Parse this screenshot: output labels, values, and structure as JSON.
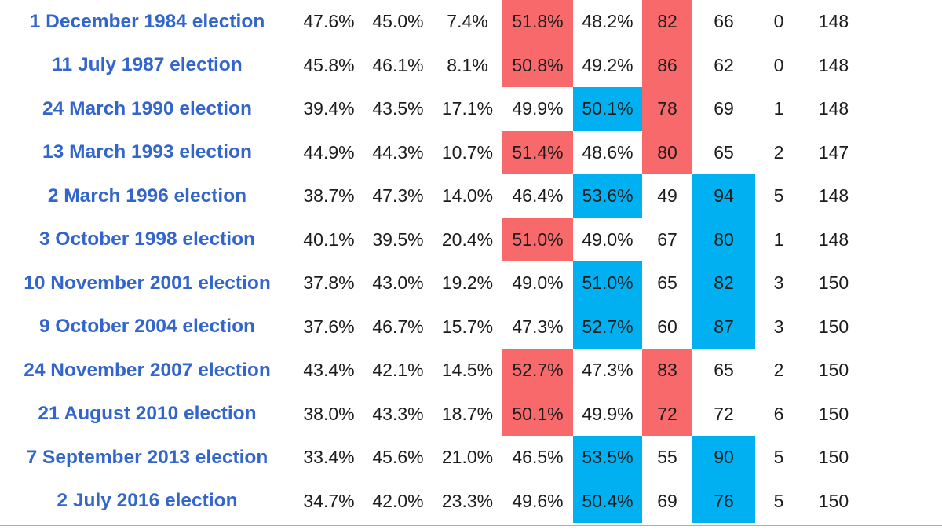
{
  "colors": {
    "labor_red": "#F8696B",
    "coalition_blue": "#00B0F0",
    "link_blue": "#3366CC",
    "text": "#1C1C1C",
    "rule_gray": "#ACACAC"
  },
  "table": {
    "columns": [
      "election",
      "alp-primary-pct",
      "lnp-primary-pct",
      "others-primary-pct",
      "tpp-alp-pct",
      "tpp-lnp-pct",
      "alp-seats",
      "lnp-seats",
      "others-seats",
      "total-seats"
    ],
    "rows": [
      {
        "election": "1 December 1984 election",
        "cells": [
          {
            "v": "47.6%"
          },
          {
            "v": "45.0%"
          },
          {
            "v": "7.4%"
          },
          {
            "v": "51.8%",
            "hl": "red"
          },
          {
            "v": "48.2%"
          },
          {
            "v": "82",
            "hl": "red"
          },
          {
            "v": "66"
          },
          {
            "v": "0"
          },
          {
            "v": "148"
          }
        ]
      },
      {
        "election": "11 July 1987 election",
        "cells": [
          {
            "v": "45.8%"
          },
          {
            "v": "46.1%"
          },
          {
            "v": "8.1%"
          },
          {
            "v": "50.8%",
            "hl": "red"
          },
          {
            "v": "49.2%"
          },
          {
            "v": "86",
            "hl": "red"
          },
          {
            "v": "62"
          },
          {
            "v": "0"
          },
          {
            "v": "148"
          }
        ]
      },
      {
        "election": "24 March 1990 election",
        "cells": [
          {
            "v": "39.4%"
          },
          {
            "v": "43.5%"
          },
          {
            "v": "17.1%"
          },
          {
            "v": "49.9%"
          },
          {
            "v": "50.1%",
            "hl": "blue"
          },
          {
            "v": "78",
            "hl": "red"
          },
          {
            "v": "69"
          },
          {
            "v": "1"
          },
          {
            "v": "148"
          }
        ]
      },
      {
        "election": "13 March 1993 election",
        "cells": [
          {
            "v": "44.9%"
          },
          {
            "v": "44.3%"
          },
          {
            "v": "10.7%"
          },
          {
            "v": "51.4%",
            "hl": "red"
          },
          {
            "v": "48.6%"
          },
          {
            "v": "80",
            "hl": "red"
          },
          {
            "v": "65"
          },
          {
            "v": "2"
          },
          {
            "v": "147"
          }
        ]
      },
      {
        "election": "2 March 1996 election",
        "cells": [
          {
            "v": "38.7%"
          },
          {
            "v": "47.3%"
          },
          {
            "v": "14.0%"
          },
          {
            "v": "46.4%"
          },
          {
            "v": "53.6%",
            "hl": "blue"
          },
          {
            "v": "49"
          },
          {
            "v": "94",
            "hl": "blue"
          },
          {
            "v": "5"
          },
          {
            "v": "148"
          }
        ]
      },
      {
        "election": "3 October 1998 election",
        "cells": [
          {
            "v": "40.1%"
          },
          {
            "v": "39.5%"
          },
          {
            "v": "20.4%"
          },
          {
            "v": "51.0%",
            "hl": "red"
          },
          {
            "v": "49.0%"
          },
          {
            "v": "67"
          },
          {
            "v": "80",
            "hl": "blue"
          },
          {
            "v": "1"
          },
          {
            "v": "148"
          }
        ]
      },
      {
        "election": "10 November 2001 election",
        "cells": [
          {
            "v": "37.8%"
          },
          {
            "v": "43.0%"
          },
          {
            "v": "19.2%"
          },
          {
            "v": "49.0%"
          },
          {
            "v": "51.0%",
            "hl": "blue"
          },
          {
            "v": "65"
          },
          {
            "v": "82",
            "hl": "blue"
          },
          {
            "v": "3"
          },
          {
            "v": "150"
          }
        ]
      },
      {
        "election": "9 October 2004 election",
        "cells": [
          {
            "v": "37.6%"
          },
          {
            "v": "46.7%"
          },
          {
            "v": "15.7%"
          },
          {
            "v": "47.3%"
          },
          {
            "v": "52.7%",
            "hl": "blue"
          },
          {
            "v": "60"
          },
          {
            "v": "87",
            "hl": "blue"
          },
          {
            "v": "3"
          },
          {
            "v": "150"
          }
        ]
      },
      {
        "election": "24 November 2007 election",
        "cells": [
          {
            "v": "43.4%"
          },
          {
            "v": "42.1%"
          },
          {
            "v": "14.5%"
          },
          {
            "v": "52.7%",
            "hl": "red"
          },
          {
            "v": "47.3%"
          },
          {
            "v": "83",
            "hl": "red"
          },
          {
            "v": "65"
          },
          {
            "v": "2"
          },
          {
            "v": "150"
          }
        ]
      },
      {
        "election": "21 August 2010 election",
        "cells": [
          {
            "v": "38.0%"
          },
          {
            "v": "43.3%"
          },
          {
            "v": "18.7%"
          },
          {
            "v": "50.1%",
            "hl": "red"
          },
          {
            "v": "49.9%"
          },
          {
            "v": "72",
            "hl": "red"
          },
          {
            "v": "72"
          },
          {
            "v": "6"
          },
          {
            "v": "150"
          }
        ]
      },
      {
        "election": "7 September 2013 election",
        "cells": [
          {
            "v": "33.4%"
          },
          {
            "v": "45.6%"
          },
          {
            "v": "21.0%"
          },
          {
            "v": "46.5%"
          },
          {
            "v": "53.5%",
            "hl": "blue"
          },
          {
            "v": "55"
          },
          {
            "v": "90",
            "hl": "blue"
          },
          {
            "v": "5"
          },
          {
            "v": "150"
          }
        ]
      },
      {
        "election": "2 July 2016 election",
        "cells": [
          {
            "v": "34.7%"
          },
          {
            "v": "42.0%"
          },
          {
            "v": "23.3%"
          },
          {
            "v": "49.6%"
          },
          {
            "v": "50.4%",
            "hl": "blue"
          },
          {
            "v": "69"
          },
          {
            "v": "76",
            "hl": "blue"
          },
          {
            "v": "5"
          },
          {
            "v": "150"
          }
        ]
      }
    ]
  }
}
